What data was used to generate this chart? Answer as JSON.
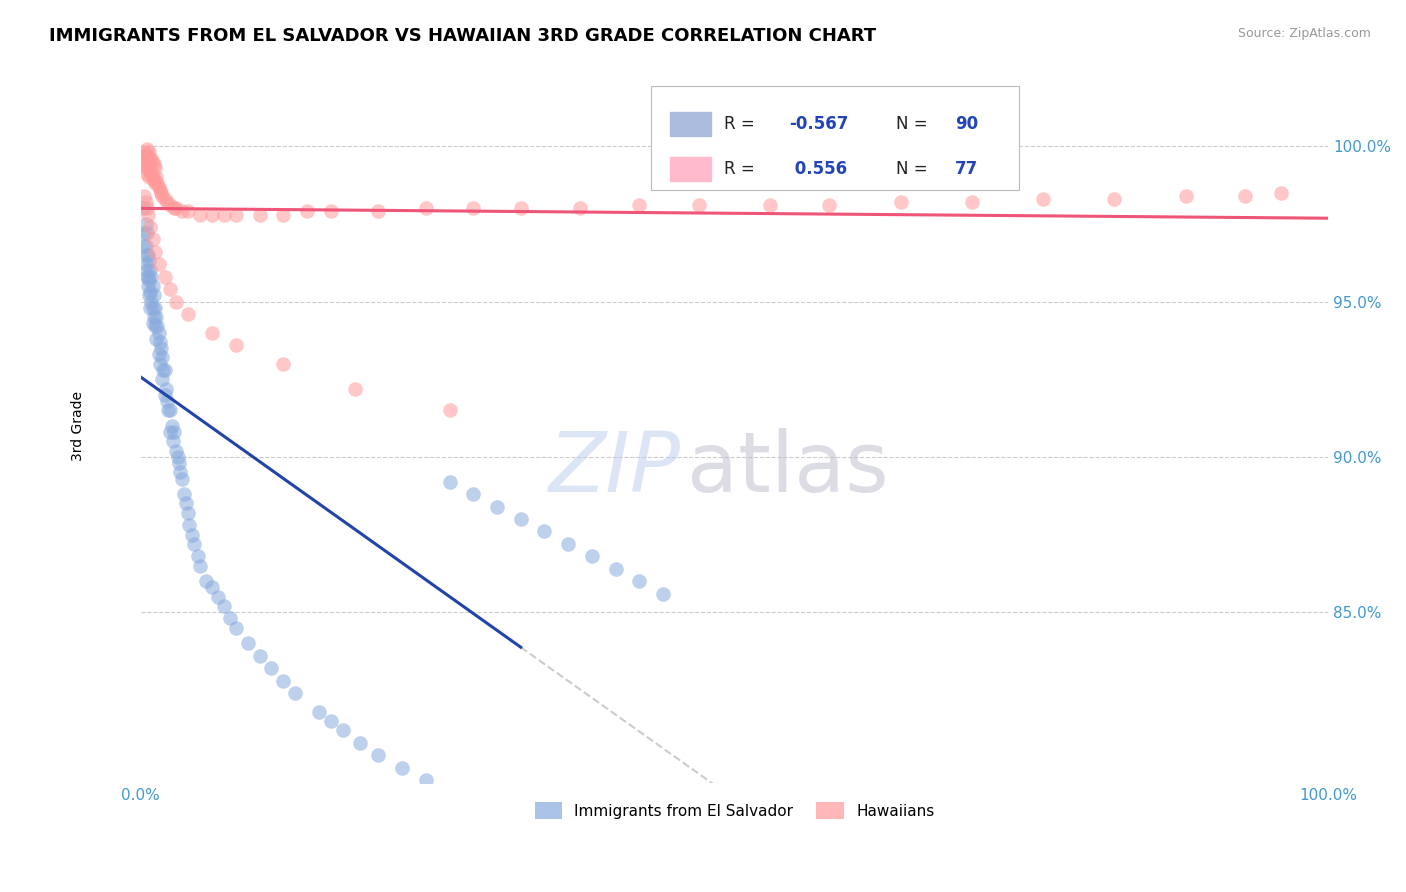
{
  "title": "IMMIGRANTS FROM EL SALVADOR VS HAWAIIAN 3RD GRADE CORRELATION CHART",
  "source": "Source: ZipAtlas.com",
  "ylabel": "3rd Grade",
  "xlim": [
    0.0,
    1.0
  ],
  "ylim": [
    0.795,
    1.025
  ],
  "yticks": [
    0.85,
    0.9,
    0.95,
    1.0
  ],
  "ytick_labels": [
    "85.0%",
    "90.0%",
    "95.0%",
    "100.0%"
  ],
  "xtick_positions": [
    0.0,
    1.0
  ],
  "xtick_labels": [
    "0.0%",
    "100.0%"
  ],
  "blue_color": "#88AADD",
  "pink_color": "#FF9999",
  "trendline_blue_color": "#2244AA",
  "trendline_pink_color": "#EE5577",
  "trendline_dashed_color": "#CCCCCC",
  "tick_color": "#4499CC",
  "watermark_zip_color": "#BBCCEE",
  "watermark_atlas_color": "#BBBBCC",
  "title_fontsize": 13,
  "legend_box_color": "#EEEEEE",
  "blue_scatter_x": [
    0.002,
    0.003,
    0.003,
    0.004,
    0.004,
    0.004,
    0.005,
    0.005,
    0.005,
    0.005,
    0.006,
    0.006,
    0.006,
    0.007,
    0.007,
    0.007,
    0.008,
    0.008,
    0.008,
    0.009,
    0.009,
    0.01,
    0.01,
    0.01,
    0.011,
    0.011,
    0.012,
    0.012,
    0.013,
    0.013,
    0.014,
    0.015,
    0.015,
    0.016,
    0.016,
    0.017,
    0.018,
    0.018,
    0.019,
    0.02,
    0.02,
    0.021,
    0.022,
    0.023,
    0.025,
    0.025,
    0.026,
    0.027,
    0.028,
    0.03,
    0.031,
    0.032,
    0.033,
    0.035,
    0.036,
    0.038,
    0.04,
    0.041,
    0.043,
    0.045,
    0.048,
    0.05,
    0.055,
    0.06,
    0.065,
    0.07,
    0.075,
    0.08,
    0.09,
    0.1,
    0.11,
    0.12,
    0.13,
    0.15,
    0.16,
    0.17,
    0.185,
    0.2,
    0.22,
    0.24,
    0.26,
    0.28,
    0.3,
    0.32,
    0.34,
    0.36,
    0.38,
    0.4,
    0.42,
    0.44
  ],
  "blue_scatter_y": [
    0.98,
    0.972,
    0.968,
    0.975,
    0.968,
    0.962,
    0.972,
    0.965,
    0.96,
    0.958,
    0.965,
    0.958,
    0.955,
    0.963,
    0.957,
    0.952,
    0.96,
    0.953,
    0.948,
    0.958,
    0.95,
    0.955,
    0.948,
    0.943,
    0.952,
    0.945,
    0.948,
    0.942,
    0.945,
    0.938,
    0.942,
    0.94,
    0.933,
    0.937,
    0.93,
    0.935,
    0.932,
    0.925,
    0.928,
    0.928,
    0.92,
    0.922,
    0.918,
    0.915,
    0.915,
    0.908,
    0.91,
    0.905,
    0.908,
    0.902,
    0.9,
    0.898,
    0.895,
    0.893,
    0.888,
    0.885,
    0.882,
    0.878,
    0.875,
    0.872,
    0.868,
    0.865,
    0.86,
    0.858,
    0.855,
    0.852,
    0.848,
    0.845,
    0.84,
    0.836,
    0.832,
    0.828,
    0.824,
    0.818,
    0.815,
    0.812,
    0.808,
    0.804,
    0.8,
    0.796,
    0.892,
    0.888,
    0.884,
    0.88,
    0.876,
    0.872,
    0.868,
    0.864,
    0.86,
    0.856
  ],
  "pink_scatter_x": [
    0.002,
    0.003,
    0.003,
    0.004,
    0.004,
    0.005,
    0.005,
    0.005,
    0.006,
    0.006,
    0.007,
    0.007,
    0.007,
    0.008,
    0.008,
    0.009,
    0.009,
    0.01,
    0.01,
    0.011,
    0.011,
    0.012,
    0.012,
    0.013,
    0.014,
    0.015,
    0.016,
    0.017,
    0.018,
    0.02,
    0.022,
    0.025,
    0.028,
    0.03,
    0.035,
    0.04,
    0.05,
    0.06,
    0.07,
    0.08,
    0.1,
    0.12,
    0.14,
    0.16,
    0.2,
    0.24,
    0.28,
    0.32,
    0.37,
    0.42,
    0.47,
    0.53,
    0.58,
    0.64,
    0.7,
    0.76,
    0.82,
    0.88,
    0.93,
    0.96,
    0.003,
    0.004,
    0.005,
    0.006,
    0.008,
    0.01,
    0.012,
    0.015,
    0.02,
    0.025,
    0.03,
    0.04,
    0.06,
    0.08,
    0.12,
    0.18,
    0.26
  ],
  "pink_scatter_y": [
    0.997,
    0.998,
    0.994,
    0.997,
    0.993,
    0.999,
    0.995,
    0.991,
    0.997,
    0.993,
    0.998,
    0.994,
    0.99,
    0.996,
    0.992,
    0.996,
    0.991,
    0.995,
    0.99,
    0.994,
    0.989,
    0.993,
    0.988,
    0.99,
    0.988,
    0.987,
    0.986,
    0.985,
    0.984,
    0.983,
    0.982,
    0.981,
    0.98,
    0.98,
    0.979,
    0.979,
    0.978,
    0.978,
    0.978,
    0.978,
    0.978,
    0.978,
    0.979,
    0.979,
    0.979,
    0.98,
    0.98,
    0.98,
    0.98,
    0.981,
    0.981,
    0.981,
    0.981,
    0.982,
    0.982,
    0.983,
    0.983,
    0.984,
    0.984,
    0.985,
    0.984,
    0.982,
    0.98,
    0.978,
    0.974,
    0.97,
    0.966,
    0.962,
    0.958,
    0.954,
    0.95,
    0.946,
    0.94,
    0.936,
    0.93,
    0.922,
    0.915
  ]
}
